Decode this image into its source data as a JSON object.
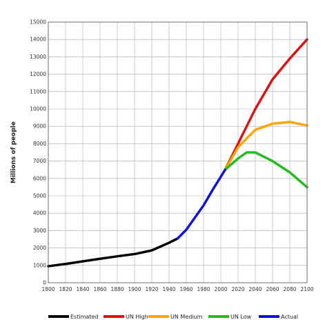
{
  "chart_data": {
    "type": "line",
    "title": "",
    "xlabel": "",
    "ylabel": "Millions of people",
    "xlim": [
      1800,
      2100
    ],
    "ylim": [
      0,
      15000
    ],
    "x_ticks": [
      1800,
      1820,
      1840,
      1860,
      1880,
      1900,
      1920,
      1940,
      1960,
      1980,
      2000,
      2020,
      2040,
      2060,
      2080,
      2100
    ],
    "y_ticks": [
      0,
      1000,
      2000,
      3000,
      4000,
      5000,
      6000,
      7000,
      8000,
      9000,
      10000,
      11000,
      12000,
      13000,
      14000,
      15000
    ],
    "grid": true,
    "legend_position": "bottom",
    "series": [
      {
        "name": "Estimated",
        "color": "#000000",
        "x": [
          1800,
          1820,
          1840,
          1860,
          1880,
          1900,
          1920,
          1940,
          1950
        ],
        "y": [
          950,
          1080,
          1230,
          1380,
          1520,
          1650,
          1860,
          2300,
          2550
        ]
      },
      {
        "name": "UN High",
        "color": "#dd1111",
        "x": [
          2005,
          2020,
          2040,
          2060,
          2080,
          2100
        ],
        "y": [
          6500,
          8000,
          10000,
          11700,
          12900,
          14000
        ]
      },
      {
        "name": "UN Medium",
        "color": "#ffa500",
        "x": [
          2005,
          2020,
          2040,
          2060,
          2080,
          2100
        ],
        "y": [
          6500,
          7800,
          8800,
          9150,
          9250,
          9050
        ]
      },
      {
        "name": "UN Low",
        "color": "#22bb22",
        "x": [
          2005,
          2020,
          2030,
          2040,
          2060,
          2080,
          2100
        ],
        "y": [
          6500,
          7150,
          7500,
          7500,
          7000,
          6350,
          5500
        ]
      },
      {
        "name": "Actual",
        "color": "#1111dd",
        "x": [
          1950,
          1960,
          1970,
          1980,
          1990,
          2000,
          2005
        ],
        "y": [
          2550,
          3050,
          3750,
          4450,
          5300,
          6100,
          6500
        ]
      }
    ]
  }
}
